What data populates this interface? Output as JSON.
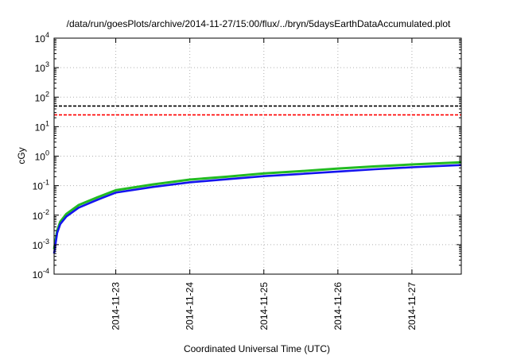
{
  "chart_data": {
    "type": "line",
    "title": "/data/run/goesPlots/archive/2014-11-27/15:00/flux/../bryn/5daysEarthDataAccumulated.plot",
    "xlabel": "Coordinated Universal Time (UTC)",
    "ylabel": "cGy",
    "xlim": [
      "2014-11-22 04:00",
      "2014-11-27 16:00"
    ],
    "ylim": [
      0.0001,
      10000
    ],
    "yscale": "log",
    "grid": true,
    "x_ticks": [
      "2014-11-23",
      "2014-11-24",
      "2014-11-25",
      "2014-11-26",
      "2014-11-27"
    ],
    "y_ticks": [
      {
        "base": "10",
        "exp": "-4"
      },
      {
        "base": "10",
        "exp": "-3"
      },
      {
        "base": "10",
        "exp": "-2"
      },
      {
        "base": "10",
        "exp": "-1"
      },
      {
        "base": "10",
        "exp": "0"
      },
      {
        "base": "10",
        "exp": "1"
      },
      {
        "base": "10",
        "exp": "2"
      },
      {
        "base": "10",
        "exp": "3"
      },
      {
        "base": "10",
        "exp": "4"
      }
    ],
    "thresholds": [
      {
        "value": 50,
        "color": "#000000",
        "style": "dashed"
      },
      {
        "value": 25,
        "color": "#ff0000",
        "style": "dashed"
      }
    ],
    "series": [
      {
        "color": "#22bb22",
        "points": [
          [
            "2014-11-22 04:00",
            0.0007
          ],
          [
            "2014-11-22 05:00",
            0.003
          ],
          [
            "2014-11-22 06:00",
            0.006
          ],
          [
            "2014-11-22 08:00",
            0.011
          ],
          [
            "2014-11-22 12:00",
            0.022
          ],
          [
            "2014-11-22 18:00",
            0.04
          ],
          [
            "2014-11-23 00:00",
            0.07
          ],
          [
            "2014-11-23 12:00",
            0.11
          ],
          [
            "2014-11-24 00:00",
            0.16
          ],
          [
            "2014-11-24 12:00",
            0.2
          ],
          [
            "2014-11-25 00:00",
            0.26
          ],
          [
            "2014-11-25 12:00",
            0.31
          ],
          [
            "2014-11-26 00:00",
            0.38
          ],
          [
            "2014-11-26 12:00",
            0.45
          ],
          [
            "2014-11-27 00:00",
            0.52
          ],
          [
            "2014-11-27 16:00",
            0.62
          ]
        ]
      },
      {
        "color": "#1414ee",
        "points": [
          [
            "2014-11-22 04:00",
            0.0005
          ],
          [
            "2014-11-22 05:00",
            0.0025
          ],
          [
            "2014-11-22 06:00",
            0.005
          ],
          [
            "2014-11-22 08:00",
            0.009
          ],
          [
            "2014-11-22 12:00",
            0.018
          ],
          [
            "2014-11-22 18:00",
            0.033
          ],
          [
            "2014-11-23 00:00",
            0.058
          ],
          [
            "2014-11-23 12:00",
            0.09
          ],
          [
            "2014-11-24 00:00",
            0.13
          ],
          [
            "2014-11-24 12:00",
            0.165
          ],
          [
            "2014-11-25 00:00",
            0.21
          ],
          [
            "2014-11-25 12:00",
            0.25
          ],
          [
            "2014-11-26 00:00",
            0.3
          ],
          [
            "2014-11-26 12:00",
            0.36
          ],
          [
            "2014-11-27 00:00",
            0.42
          ],
          [
            "2014-11-27 16:00",
            0.5
          ]
        ]
      }
    ]
  }
}
